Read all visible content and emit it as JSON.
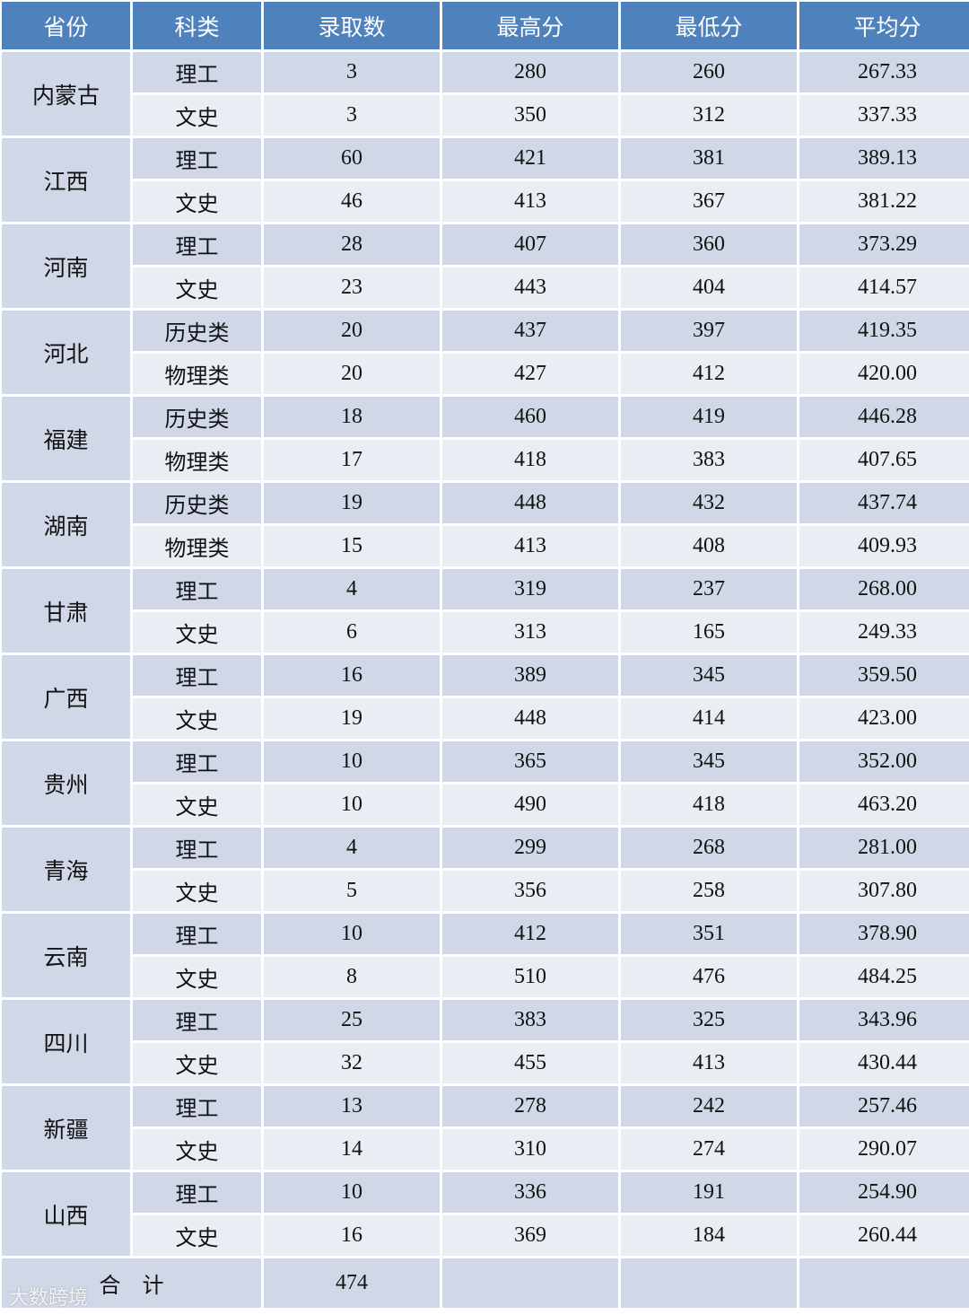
{
  "headers": [
    "省份",
    "科类",
    "录取数",
    "最高分",
    "最低分",
    "平均分"
  ],
  "provinces": [
    {
      "name": "内蒙古",
      "rows": [
        [
          "理工",
          "3",
          "280",
          "260",
          "267.33"
        ],
        [
          "文史",
          "3",
          "350",
          "312",
          "337.33"
        ]
      ]
    },
    {
      "name": "江西",
      "rows": [
        [
          "理工",
          "60",
          "421",
          "381",
          "389.13"
        ],
        [
          "文史",
          "46",
          "413",
          "367",
          "381.22"
        ]
      ]
    },
    {
      "name": "河南",
      "rows": [
        [
          "理工",
          "28",
          "407",
          "360",
          "373.29"
        ],
        [
          "文史",
          "23",
          "443",
          "404",
          "414.57"
        ]
      ]
    },
    {
      "name": "河北",
      "rows": [
        [
          "历史类",
          "20",
          "437",
          "397",
          "419.35"
        ],
        [
          "物理类",
          "20",
          "427",
          "412",
          "420.00"
        ]
      ]
    },
    {
      "name": "福建",
      "rows": [
        [
          "历史类",
          "18",
          "460",
          "419",
          "446.28"
        ],
        [
          "物理类",
          "17",
          "418",
          "383",
          "407.65"
        ]
      ]
    },
    {
      "name": "湖南",
      "rows": [
        [
          "历史类",
          "19",
          "448",
          "432",
          "437.74"
        ],
        [
          "物理类",
          "15",
          "413",
          "408",
          "409.93"
        ]
      ]
    },
    {
      "name": "甘肃",
      "rows": [
        [
          "理工",
          "4",
          "319",
          "237",
          "268.00"
        ],
        [
          "文史",
          "6",
          "313",
          "165",
          "249.33"
        ]
      ]
    },
    {
      "name": "广西",
      "rows": [
        [
          "理工",
          "16",
          "389",
          "345",
          "359.50"
        ],
        [
          "文史",
          "19",
          "448",
          "414",
          "423.00"
        ]
      ]
    },
    {
      "name": "贵州",
      "rows": [
        [
          "理工",
          "10",
          "365",
          "345",
          "352.00"
        ],
        [
          "文史",
          "10",
          "490",
          "418",
          "463.20"
        ]
      ]
    },
    {
      "name": "青海",
      "rows": [
        [
          "理工",
          "4",
          "299",
          "268",
          "281.00"
        ],
        [
          "文史",
          "5",
          "356",
          "258",
          "307.80"
        ]
      ]
    },
    {
      "name": "云南",
      "rows": [
        [
          "理工",
          "10",
          "412",
          "351",
          "378.90"
        ],
        [
          "文史",
          "8",
          "510",
          "476",
          "484.25"
        ]
      ]
    },
    {
      "name": "四川",
      "rows": [
        [
          "理工",
          "25",
          "383",
          "325",
          "343.96"
        ],
        [
          "文史",
          "32",
          "455",
          "413",
          "430.44"
        ]
      ]
    },
    {
      "name": "新疆",
      "rows": [
        [
          "理工",
          "13",
          "278",
          "242",
          "257.46"
        ],
        [
          "文史",
          "14",
          "310",
          "274",
          "290.07"
        ]
      ]
    },
    {
      "name": "山西",
      "rows": [
        [
          "理工",
          "10",
          "336",
          "191",
          "254.90"
        ],
        [
          "文史",
          "16",
          "369",
          "184",
          "260.44"
        ]
      ]
    }
  ],
  "total": {
    "label": "合    计",
    "count": "474"
  },
  "watermark": "大数跨境",
  "colors": {
    "header": "#4f81bd",
    "row_dark": "#d0d8e8",
    "row_light": "#e9edf4"
  }
}
